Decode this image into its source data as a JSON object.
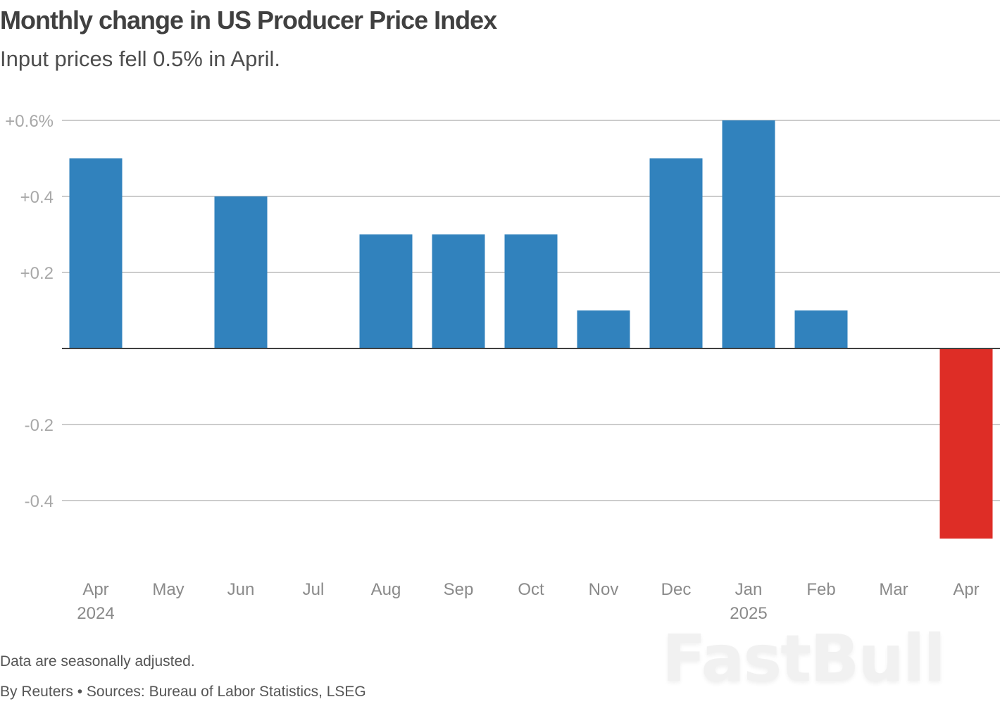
{
  "watermark": "FastBull",
  "chart_data": {
    "type": "bar",
    "title": "Monthly change in US Producer Price Index",
    "subtitle": "Input prices fell 0.5% in April.",
    "xlabel": "",
    "ylabel": "",
    "ylim": [
      -0.5,
      0.6
    ],
    "grid": true,
    "y_ticks": [
      {
        "value": 0.6,
        "label": "+0.6%"
      },
      {
        "value": 0.4,
        "label": "+0.4"
      },
      {
        "value": 0.2,
        "label": "+0.2"
      },
      {
        "value": -0.2,
        "label": "-0.2"
      },
      {
        "value": -0.4,
        "label": "-0.4"
      }
    ],
    "categories": [
      "Apr",
      "May",
      "Jun",
      "Jul",
      "Aug",
      "Sep",
      "Oct",
      "Nov",
      "Dec",
      "Jan",
      "Feb",
      "Mar",
      "Apr"
    ],
    "year_labels": {
      "0": "2024",
      "9": "2025"
    },
    "values": [
      0.5,
      0.0,
      0.4,
      0.0,
      0.3,
      0.3,
      0.3,
      0.1,
      0.5,
      0.6,
      0.1,
      0.0,
      -0.5
    ],
    "colors": {
      "positive": "#3182bd",
      "negative": "#de2d26",
      "grid": "#cccccc",
      "zero_line": "#404040"
    },
    "note": "Data are seasonally adjusted.",
    "source": "By Reuters • Sources: Bureau of Labor Statistics, LSEG"
  }
}
